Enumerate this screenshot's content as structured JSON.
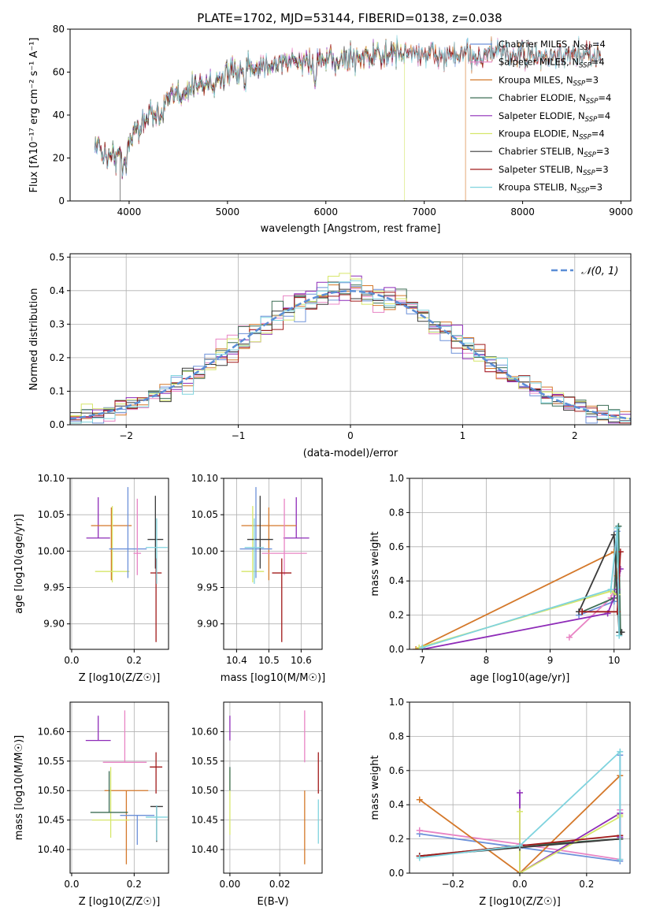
{
  "figure": {
    "title": "PLATE=1702, MJD=53144, FIBERID=0138, z=0.038"
  },
  "chart_data": [
    {
      "type": "line",
      "id": "spectrum",
      "title": "PLATE=1702, MJD=53144, FIBERID=0138, z=0.038",
      "xlabel": "wavelength [Angstrom, rest frame]",
      "ylabel": "Flux [fλ10⁻¹⁷ erg cm⁻² s⁻¹ A⁻¹]",
      "xlim": [
        3400,
        9100
      ],
      "ylim": [
        0,
        80
      ],
      "xticks": [
        4000,
        5000,
        6000,
        7000,
        8000,
        9000
      ],
      "yticks": [
        0,
        20,
        40,
        60,
        80
      ],
      "grid": false,
      "legend_position": "top-right",
      "continuum": {
        "x": [
          3650,
          3750,
          3850,
          3950,
          4100,
          4300,
          4500,
          4700,
          4900,
          5100,
          5300,
          5500,
          5700,
          5900,
          6100,
          6300,
          6500,
          6700,
          6900,
          7100,
          7300,
          7500,
          7700,
          7900,
          8100,
          8300,
          8500,
          8700,
          8800
        ],
        "y": [
          27,
          22,
          20,
          25,
          36,
          44,
          50,
          54,
          57,
          60,
          63,
          64,
          65,
          65,
          65,
          67,
          68,
          69,
          69,
          68,
          67,
          68,
          69,
          68,
          67,
          67,
          67,
          68,
          69
        ]
      },
      "series": [
        {
          "name": "Chabrier MILES, N_SSP=4",
          "label": "Chabrier MILES, N",
          "sub": "SSP",
          "suffix": "=4",
          "color": "#6d91d9",
          "dropout_x": null,
          "xmax": 8800
        },
        {
          "name": "Salpeter MILES, N_SSP=4",
          "label": "Salpeter MILES, N",
          "sub": "SSP",
          "suffix": "=4",
          "color": "#e884c4",
          "dropout_x": null,
          "xmax": 8800
        },
        {
          "name": "Kroupa MILES, N_SSP=3",
          "label": "Kroupa MILES, N",
          "sub": "SSP",
          "suffix": "=3",
          "color": "#d4782a",
          "dropout_x": 7420,
          "xmax": 8800
        },
        {
          "name": "Chabrier ELODIE, N_SSP=4",
          "label": "Chabrier ELODIE, N",
          "sub": "SSP",
          "suffix": "=4",
          "color": "#3d6e55",
          "dropout_x": null,
          "xmax": 6800
        },
        {
          "name": "Salpeter ELODIE, N_SSP=4",
          "label": "Salpeter ELODIE, N",
          "sub": "SSP",
          "suffix": "=4",
          "color": "#8e2bb8",
          "dropout_x": null,
          "xmax": 6800
        },
        {
          "name": "Kroupa ELODIE, N_SSP=4",
          "label": "Kroupa ELODIE, N",
          "sub": "SSP",
          "suffix": "=4",
          "color": "#d6e66a",
          "dropout_x": 6800,
          "xmax": 6800
        },
        {
          "name": "Chabrier STELIB, N_SSP=3",
          "label": "Chabrier STELIB, N",
          "sub": "SSP",
          "suffix": "=3",
          "color": "#3a3a3a",
          "dropout_x": 3910,
          "xmax": 8800
        },
        {
          "name": "Salpeter STELIB, N_SSP=3",
          "label": "Salpeter STELIB, N",
          "sub": "SSP",
          "suffix": "=3",
          "color": "#a11a1a",
          "dropout_x": null,
          "xmax": 8800
        },
        {
          "name": "Kroupa STELIB, N_SSP=3",
          "label": "Kroupa STELIB, N",
          "sub": "SSP",
          "suffix": "=3",
          "color": "#7fd3de",
          "dropout_x": null,
          "xmax": 8800
        }
      ]
    },
    {
      "type": "histogram",
      "id": "residuals",
      "xlabel": "(data-model)/error",
      "ylabel": "Normed distribution",
      "xlim": [
        -2.5,
        2.5
      ],
      "ylim": [
        0,
        0.51
      ],
      "xticks": [
        -2,
        -1,
        0,
        1,
        2
      ],
      "yticks": [
        0.0,
        0.1,
        0.2,
        0.3,
        0.4,
        0.5
      ],
      "grid": true,
      "bin_width": 0.1,
      "legend": "𝒩(0, 1)",
      "legend_position": "top-right",
      "reference_color": "#5b8ed6"
    },
    {
      "type": "scatter",
      "id": "age-vs-Z",
      "xlabel": "Z [log10(Z/Z☉)]",
      "ylabel": "age  [log10(age/yr)]",
      "xlim": [
        -0.005,
        0.31
      ],
      "ylim": [
        9.865,
        10.1
      ],
      "xticks": [
        0.0,
        0.2
      ],
      "yticks": [
        9.9,
        9.95,
        10.0,
        10.05,
        10.1
      ],
      "grid": true,
      "points": [
        {
          "x": 0.085,
          "y": 10.018,
          "xerr": 0.038,
          "yerr_lo": 0.0,
          "yerr_hi": 0.056,
          "color": "#8e2bb8"
        },
        {
          "x": 0.127,
          "y": 10.035,
          "xerr": 0.065,
          "yerr_lo": 0.075,
          "yerr_hi": 0.025,
          "color": "#d4782a"
        },
        {
          "x": 0.13,
          "y": 9.972,
          "xerr": 0.055,
          "yerr_lo": 0.015,
          "yerr_hi": 0.09,
          "color": "#d6e66a"
        },
        {
          "x": 0.18,
          "y": 10.003,
          "xerr": 0.06,
          "yerr_lo": 0.04,
          "yerr_hi": 0.085,
          "color": "#6d91d9"
        },
        {
          "x": 0.21,
          "y": 9.997,
          "xerr": 0.012,
          "yerr_lo": 0.03,
          "yerr_hi": 0.075,
          "color": "#e884c4"
        },
        {
          "x": 0.268,
          "y": 10.016,
          "xerr": 0.025,
          "yerr_lo": 0.04,
          "yerr_hi": 0.06,
          "color": "#3a3a3a"
        },
        {
          "x": 0.27,
          "y": 9.97,
          "xerr": 0.018,
          "yerr_lo": 0.095,
          "yerr_hi": 0.02,
          "color": "#a11a1a"
        },
        {
          "x": 0.272,
          "y": 10.005,
          "xerr": 0.035,
          "yerr_lo": 0.05,
          "yerr_hi": 0.04,
          "color": "#7fd3de"
        }
      ]
    },
    {
      "type": "scatter",
      "id": "age-vs-mass",
      "xlabel": "mass [log10(M/M☉)]",
      "ylabel": "",
      "xlim": [
        10.36,
        10.665
      ],
      "ylim": [
        9.865,
        10.1
      ],
      "xticks": [
        10.4,
        10.5,
        10.6
      ],
      "yticks": [
        9.9,
        9.95,
        10.0,
        10.05,
        10.1
      ],
      "grid": true,
      "points": [
        {
          "x": 10.585,
          "y": 10.018,
          "xerr": 0.04,
          "yerr_lo": 0.0,
          "yerr_hi": 0.056,
          "color": "#8e2bb8"
        },
        {
          "x": 10.5,
          "y": 10.035,
          "xerr": 0.085,
          "yerr_lo": 0.075,
          "yerr_hi": 0.025,
          "color": "#d4782a"
        },
        {
          "x": 10.45,
          "y": 9.972,
          "xerr": 0.035,
          "yerr_lo": 0.015,
          "yerr_hi": 0.09,
          "color": "#d6e66a"
        },
        {
          "x": 10.46,
          "y": 10.003,
          "xerr": 0.05,
          "yerr_lo": 0.04,
          "yerr_hi": 0.085,
          "color": "#6d91d9"
        },
        {
          "x": 10.548,
          "y": 9.997,
          "xerr": 0.07,
          "yerr_lo": 0.03,
          "yerr_hi": 0.075,
          "color": "#e884c4"
        },
        {
          "x": 10.473,
          "y": 10.016,
          "xerr": 0.04,
          "yerr_lo": 0.04,
          "yerr_hi": 0.06,
          "color": "#3a3a3a"
        },
        {
          "x": 10.54,
          "y": 9.97,
          "xerr": 0.03,
          "yerr_lo": 0.095,
          "yerr_hi": 0.02,
          "color": "#a11a1a"
        },
        {
          "x": 10.455,
          "y": 10.005,
          "xerr": 0.03,
          "yerr_lo": 0.05,
          "yerr_hi": 0.04,
          "color": "#7fd3de"
        }
      ]
    },
    {
      "type": "line",
      "id": "mass-weight-vs-age",
      "xlabel": "age  [log10(age/yr)]",
      "ylabel": "mass weight",
      "xlim": [
        6.8,
        10.25
      ],
      "ylim": [
        0,
        1.0
      ],
      "xticks": [
        7,
        8,
        9,
        10
      ],
      "yticks": [
        0.0,
        0.2,
        0.4,
        0.6,
        0.8,
        1.0
      ],
      "grid": true,
      "series": [
        {
          "name": "Chabrier MILES",
          "color": "#6d91d9",
          "x": [
            9.45,
            10.0,
            10.05,
            10.1
          ],
          "y": [
            0.2,
            0.28,
            0.69,
            0.1
          ]
        },
        {
          "name": "Salpeter MILES",
          "color": "#e884c4",
          "x": [
            9.3,
            9.95,
            10.05,
            10.1
          ],
          "y": [
            0.07,
            0.3,
            0.4,
            0.1
          ]
        },
        {
          "name": "Kroupa MILES",
          "color": "#d4782a",
          "x": [
            6.9,
            10.0,
            10.05
          ],
          "y": [
            0.0,
            0.57,
            0.43
          ]
        },
        {
          "name": "Chabrier ELODIE",
          "color": "#3d6e55",
          "x": [
            9.5,
            10.0,
            10.07,
            10.1
          ],
          "y": [
            0.22,
            0.3,
            0.72,
            0.1
          ]
        },
        {
          "name": "Salpeter ELODIE",
          "color": "#8e2bb8",
          "x": [
            7.0,
            9.9,
            10.05,
            10.1
          ],
          "y": [
            0.0,
            0.21,
            0.35,
            0.47
          ]
        },
        {
          "name": "Kroupa ELODIE",
          "color": "#d6e66a",
          "x": [
            6.95,
            9.95,
            10.05
          ],
          "y": [
            0.01,
            0.34,
            0.32
          ]
        },
        {
          "name": "Chabrier STELIB",
          "color": "#3a3a3a",
          "x": [
            9.45,
            10.0,
            10.08,
            10.12
          ],
          "y": [
            0.22,
            0.67,
            0.1,
            0.1
          ]
        },
        {
          "name": "Salpeter STELIB",
          "color": "#a11a1a",
          "x": [
            9.5,
            10.05,
            10.1
          ],
          "y": [
            0.22,
            0.22,
            0.57
          ]
        },
        {
          "name": "Kroupa STELIB",
          "color": "#7fd3de",
          "x": [
            7.0,
            9.95,
            10.05,
            10.08
          ],
          "y": [
            0.01,
            0.35,
            0.71,
            0.08
          ]
        }
      ]
    },
    {
      "type": "scatter",
      "id": "mass-vs-Z",
      "xlabel": "Z [log10(Z/Z☉)]",
      "ylabel": "mass [log10(M/M☉)]",
      "xlim": [
        -0.005,
        0.31
      ],
      "ylim": [
        10.36,
        10.65
      ],
      "xticks": [
        0.0,
        0.2
      ],
      "yticks": [
        10.4,
        10.45,
        10.5,
        10.55,
        10.6
      ],
      "grid": true,
      "points": [
        {
          "x": 0.085,
          "y": 10.585,
          "xerr": 0.04,
          "yerr_lo": 0.0,
          "yerr_hi": 0.042,
          "color": "#8e2bb8"
        },
        {
          "x": 0.175,
          "y": 10.5,
          "xerr": 0.07,
          "yerr_lo": 0.125,
          "yerr_hi": 0.0,
          "color": "#d4782a"
        },
        {
          "x": 0.125,
          "y": 10.45,
          "xerr": 0.06,
          "yerr_lo": 0.03,
          "yerr_hi": 0.09,
          "color": "#d6e66a"
        },
        {
          "x": 0.21,
          "y": 10.458,
          "xerr": 0.055,
          "yerr_lo": 0.05,
          "yerr_hi": 0.0,
          "color": "#6d91d9"
        },
        {
          "x": 0.17,
          "y": 10.548,
          "xerr": 0.07,
          "yerr_lo": 0.0,
          "yerr_hi": 0.088,
          "color": "#e884c4"
        },
        {
          "x": 0.12,
          "y": 10.463,
          "xerr": 0.06,
          "yerr_lo": 0.0,
          "yerr_hi": 0.07,
          "color": "#3d6e55"
        },
        {
          "x": 0.27,
          "y": 10.54,
          "xerr": 0.02,
          "yerr_lo": 0.045,
          "yerr_hi": 0.025,
          "color": "#a11a1a"
        },
        {
          "x": 0.272,
          "y": 10.473,
          "xerr": 0.02,
          "yerr_lo": 0.06,
          "yerr_hi": 0.0,
          "color": "#3a3a3a"
        },
        {
          "x": 0.272,
          "y": 10.455,
          "xerr": 0.035,
          "yerr_lo": 0.04,
          "yerr_hi": 0.02,
          "color": "#7fd3de"
        }
      ]
    },
    {
      "type": "scatter",
      "id": "mass-vs-ebv",
      "xlabel": "E(B-V)",
      "ylabel": "",
      "xlim": [
        -0.0025,
        0.037
      ],
      "ylim": [
        10.36,
        10.65
      ],
      "xticks": [
        0.0,
        0.02
      ],
      "yticks": [
        10.4,
        10.45,
        10.5,
        10.55,
        10.6
      ],
      "grid": true,
      "points": [
        {
          "x": 0.0,
          "y": 10.585,
          "yerr_lo": 0.0,
          "yerr_hi": 0.042,
          "color": "#8e2bb8"
        },
        {
          "x": 0.0,
          "y": 10.48,
          "yerr_lo": 0.055,
          "yerr_hi": 0.055,
          "color": "#d6e66a"
        },
        {
          "x": 0.0,
          "y": 10.5,
          "yerr_lo": 0.0,
          "yerr_hi": 0.04,
          "color": "#3d6e55"
        },
        {
          "x": 0.03,
          "y": 10.5,
          "yerr_lo": 0.125,
          "yerr_hi": 0.0,
          "color": "#d4782a"
        },
        {
          "x": 0.03,
          "y": 10.548,
          "yerr_lo": 0.0,
          "yerr_hi": 0.088,
          "color": "#e884c4"
        },
        {
          "x": 0.0355,
          "y": 10.54,
          "yerr_lo": 0.045,
          "yerr_hi": 0.025,
          "color": "#a11a1a"
        },
        {
          "x": 0.0355,
          "y": 10.45,
          "yerr_lo": 0.04,
          "yerr_hi": 0.035,
          "color": "#7fd3de"
        }
      ]
    },
    {
      "type": "line",
      "id": "mass-weight-vs-Z",
      "xlabel": "Z [log10(Z/Z☉)]",
      "ylabel": "mass weight",
      "xlim": [
        -0.33,
        0.33
      ],
      "ylim": [
        0,
        1.0
      ],
      "xticks": [
        -0.2,
        0.0,
        0.2
      ],
      "yticks": [
        0.0,
        0.2,
        0.4,
        0.6,
        0.8,
        1.0
      ],
      "grid": true,
      "series": [
        {
          "name": "Chabrier MILES",
          "color": "#6d91d9",
          "x": [
            -0.3,
            0.3,
            0.3
          ],
          "y": [
            0.23,
            0.07,
            0.69
          ]
        },
        {
          "name": "Salpeter MILES",
          "color": "#e884c4",
          "x": [
            -0.3,
            0.0,
            0.3,
            0.3
          ],
          "y": [
            0.25,
            0.17,
            0.08,
            0.37
          ]
        },
        {
          "name": "Kroupa MILES",
          "color": "#d4782a",
          "x": [
            -0.3,
            0.0,
            0.3
          ],
          "y": [
            0.43,
            0.0,
            0.57
          ]
        },
        {
          "name": "Chabrier ELODIE",
          "color": "#3d6e55",
          "x": [
            -0.3,
            0.0,
            0.3
          ],
          "y": [
            0.1,
            0.16,
            0.2
          ]
        },
        {
          "name": "Salpeter ELODIE",
          "color": "#8e2bb8",
          "x": [
            0.0,
            0.0,
            0.3,
            0.3
          ],
          "y": [
            0.47,
            0.0,
            0.35,
            0.21
          ]
        },
        {
          "name": "Kroupa ELODIE",
          "color": "#d6e66a",
          "x": [
            0.0,
            0.0,
            0.3,
            0.3
          ],
          "y": [
            0.36,
            0.0,
            0.33,
            0.34
          ]
        },
        {
          "name": "Chabrier STELIB",
          "color": "#3a3a3a",
          "x": [
            -0.3,
            0.0,
            0.3
          ],
          "y": [
            0.1,
            0.15,
            0.2
          ]
        },
        {
          "name": "Salpeter STELIB",
          "color": "#a11a1a",
          "x": [
            -0.3,
            0.0,
            0.3
          ],
          "y": [
            0.1,
            0.16,
            0.22
          ]
        },
        {
          "name": "Kroupa STELIB",
          "color": "#7fd3de",
          "x": [
            -0.3,
            0.0,
            0.3,
            0.3
          ],
          "y": [
            0.09,
            0.16,
            0.71,
            0.08
          ]
        }
      ]
    }
  ]
}
